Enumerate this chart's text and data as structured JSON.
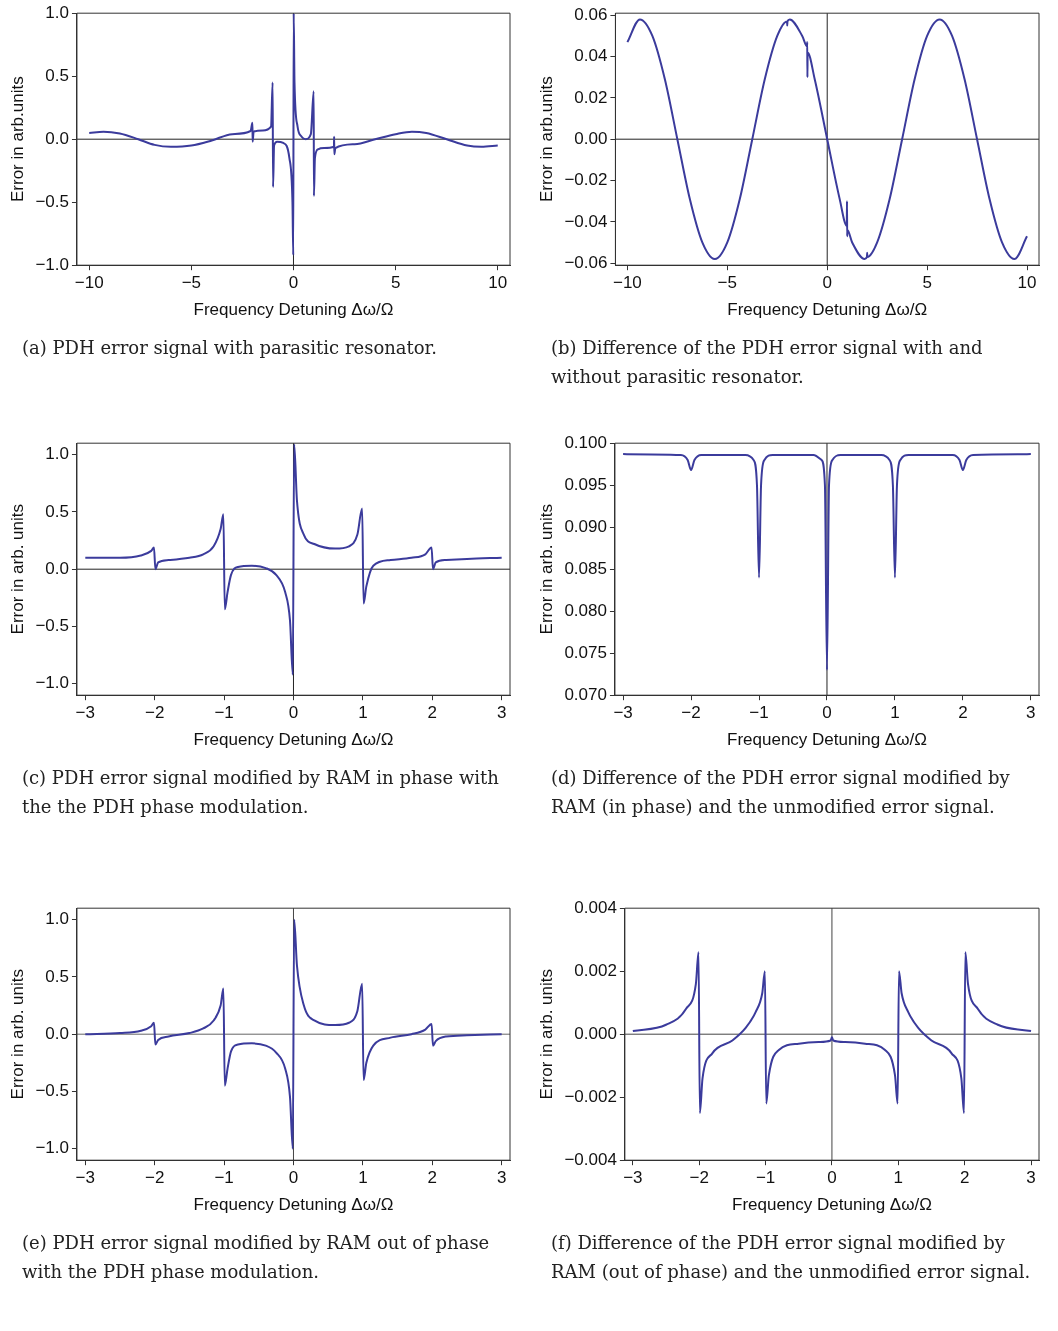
{
  "chart_data": [
    {
      "type": "line",
      "title": "(a) PDH error signal with parasitic resonator.",
      "xlabel": "Frequency Detuning Δω/Ω",
      "ylabel": "Error in arb.units",
      "color": "#3b3b9c",
      "x": [
        -10,
        -9.3,
        -8.5,
        -7.6,
        -6.8,
        -6,
        -5,
        -4,
        -3,
        -2.1,
        -2.01,
        -2,
        -1.95,
        -1.5,
        -1.1,
        -1.02,
        -1,
        -0.95,
        -0.8,
        -0.5,
        -0.2,
        -0.05,
        -0.01,
        0.01,
        0.05,
        0.2,
        0.4,
        0.6,
        0.85,
        0.99,
        1.0,
        1.05,
        1.2,
        1.5,
        1.98,
        1.99,
        2.0,
        2.05,
        3,
        4,
        5,
        5.8,
        6.5,
        7.5,
        8.5,
        9.2,
        10
      ],
      "values": [
        0.05,
        0.06,
        0.045,
        0,
        -0.045,
        -0.06,
        -0.05,
        -0.01,
        0.04,
        0.065,
        0.13,
        -0.02,
        0.06,
        0.07,
        0.1,
        0.45,
        -0.38,
        -0.05,
        -0.02,
        -0.03,
        -0.15,
        -0.5,
        -0.92,
        1.0,
        0.45,
        0.1,
        0.02,
        0,
        0.04,
        0.38,
        -0.45,
        -0.15,
        -0.08,
        -0.07,
        -0.06,
        0.02,
        -0.12,
        -0.07,
        -0.04,
        0,
        0.04,
        0.06,
        0.05,
        0,
        -0.05,
        -0.06,
        -0.05
      ],
      "xlim": [
        -10.6,
        10.6
      ],
      "ylim": [
        -1,
        1
      ],
      "xticks": [
        {
          "value": -10,
          "label": "−10"
        },
        {
          "value": -5,
          "label": "−5"
        },
        {
          "value": 0,
          "label": "0"
        },
        {
          "value": 5,
          "label": "5"
        },
        {
          "value": 10,
          "label": "10"
        }
      ],
      "yticks": [
        {
          "value": -1,
          "label": "−1.0"
        },
        {
          "value": -0.5,
          "label": "−0.5"
        },
        {
          "value": 0,
          "label": "0.0"
        },
        {
          "value": 0.5,
          "label": "0.5"
        },
        {
          "value": 1,
          "label": "1.0"
        }
      ],
      "ref_lines": [
        {
          "axis": "x",
          "value": 0,
          "color": "#222222"
        },
        {
          "axis": "y",
          "value": 0,
          "color": "#222222"
        }
      ]
    },
    {
      "type": "line",
      "title": "(b) Difference of the PDH error signal with and without parasitic resonator.",
      "xlabel": "Frequency Detuning Δω/Ω",
      "ylabel": "Error in arb.units",
      "color": "#3b3b9c",
      "x": [
        -10,
        -9.375,
        -8.75,
        -8.125,
        -7.5,
        -6.875,
        -6.25,
        -5.625,
        -5,
        -4.375,
        -3.75,
        -3.125,
        -2.5,
        -2.01,
        -2,
        -1.99,
        -1.875,
        -1.25,
        -1.01,
        -1.0,
        -0.99,
        -0.98,
        -0.625,
        0,
        0.625,
        0.98,
        0.99,
        1.0,
        1.01,
        1.25,
        1.875,
        1.99,
        2,
        2.01,
        2.5,
        3.125,
        3.75,
        4.375,
        5,
        5.625,
        6.25,
        6.875,
        7.5,
        8.125,
        8.75,
        9.375,
        10
      ],
      "values": [
        0.047,
        0.058,
        0.05,
        0.029,
        0,
        -0.029,
        -0.05,
        -0.058,
        -0.05,
        -0.029,
        0,
        0.029,
        0.05,
        0.057,
        0.055,
        0.057,
        0.058,
        0.05,
        0.045,
        0.047,
        0.03,
        0.042,
        0.029,
        0,
        -0.029,
        -0.042,
        -0.03,
        -0.047,
        -0.044,
        -0.05,
        -0.058,
        -0.057,
        -0.055,
        -0.057,
        -0.05,
        -0.029,
        0,
        0.029,
        0.05,
        0.058,
        0.05,
        0.029,
        0,
        -0.029,
        -0.05,
        -0.058,
        -0.047
      ],
      "xlim": [
        -10.6,
        10.6
      ],
      "ylim": [
        -0.061,
        0.061
      ],
      "xticks": [
        {
          "value": -10,
          "label": "−10"
        },
        {
          "value": -5,
          "label": "−5"
        },
        {
          "value": 0,
          "label": "0"
        },
        {
          "value": 5,
          "label": "5"
        },
        {
          "value": 10,
          "label": "10"
        }
      ],
      "yticks": [
        {
          "value": -0.06,
          "label": "−0.06"
        },
        {
          "value": -0.04,
          "label": "−0.04"
        },
        {
          "value": -0.02,
          "label": "−0.02"
        },
        {
          "value": 0,
          "label": "0.00"
        },
        {
          "value": 0.02,
          "label": "0.02"
        },
        {
          "value": 0.04,
          "label": "0.04"
        },
        {
          "value": 0.06,
          "label": "0.06"
        }
      ],
      "ref_lines": [
        {
          "axis": "x",
          "value": 0,
          "color": "#222222"
        },
        {
          "axis": "y",
          "value": 0,
          "color": "#222222"
        }
      ]
    },
    {
      "type": "line",
      "title": "(c) PDH error signal modified by RAM in phase with the the PDH phase modulation.",
      "xlabel": "Frequency Detuning Δω/Ω",
      "ylabel": "Error in arb. units",
      "color": "#3b3b9c",
      "x": [
        -3,
        -2.5,
        -2.2,
        -2.05,
        -2.01,
        -1.99,
        -1.95,
        -1.8,
        -1.5,
        -1.3,
        -1.15,
        -1.05,
        -1.01,
        -0.99,
        -0.95,
        -0.9,
        -0.8,
        -0.6,
        -0.4,
        -0.25,
        -0.12,
        -0.05,
        -0.01,
        0.01,
        0.05,
        0.15,
        0.3,
        0.6,
        0.8,
        0.92,
        0.99,
        1.01,
        1.05,
        1.15,
        1.4,
        1.7,
        1.9,
        1.99,
        2.01,
        2.05,
        2.2,
        2.5,
        3
      ],
      "values": [
        0.1,
        0.1,
        0.12,
        0.16,
        0.19,
        0,
        0.06,
        0.08,
        0.1,
        0.13,
        0.2,
        0.35,
        0.48,
        -0.35,
        -0.2,
        -0.05,
        0.02,
        0.03,
        0.01,
        -0.05,
        -0.2,
        -0.45,
        -0.92,
        1.09,
        0.6,
        0.3,
        0.22,
        0.18,
        0.2,
        0.3,
        0.53,
        -0.3,
        -0.15,
        0.03,
        0.08,
        0.1,
        0.13,
        0.19,
        0,
        0.06,
        0.08,
        0.09,
        0.1
      ],
      "xlim": [
        -3.12,
        3.12
      ],
      "ylim": [
        -1.1,
        1.1
      ],
      "xticks": [
        {
          "value": -3,
          "label": "−3"
        },
        {
          "value": -2,
          "label": "−2"
        },
        {
          "value": -1,
          "label": "−1"
        },
        {
          "value": 0,
          "label": "0"
        },
        {
          "value": 1,
          "label": "1"
        },
        {
          "value": 2,
          "label": "2"
        },
        {
          "value": 3,
          "label": "3"
        }
      ],
      "yticks": [
        {
          "value": -1,
          "label": "−1.0"
        },
        {
          "value": -0.5,
          "label": "−0.5"
        },
        {
          "value": 0,
          "label": "0.0"
        },
        {
          "value": 0.5,
          "label": "0.5"
        },
        {
          "value": 1,
          "label": "1.0"
        }
      ],
      "ref_lines": [
        {
          "axis": "x",
          "value": 0,
          "color": "#222222"
        },
        {
          "axis": "y",
          "value": 0,
          "color": "#222222"
        }
      ]
    },
    {
      "type": "line",
      "title": "(d) Difference of the PDH error signal modified by RAM (in phase) and the unmodified error signal.",
      "xlabel": "Frequency Detuning Δω/Ω",
      "ylabel": "Error in arb. units",
      "color": "#3b3b9c",
      "x": [
        -3,
        -2.15,
        -2.05,
        -2,
        -1.95,
        -1.85,
        -1.2,
        -1.08,
        -1.03,
        -1,
        -0.97,
        -0.92,
        -0.8,
        -0.2,
        -0.08,
        -0.03,
        0,
        0.03,
        0.08,
        0.2,
        0.8,
        0.92,
        0.97,
        1,
        1.03,
        1.08,
        1.2,
        1.85,
        1.95,
        2,
        2.05,
        2.15,
        3
      ],
      "values": [
        0.0987,
        0.0986,
        0.098,
        0.0968,
        0.098,
        0.0986,
        0.0986,
        0.098,
        0.095,
        0.084,
        0.095,
        0.098,
        0.0986,
        0.0986,
        0.098,
        0.095,
        0.073,
        0.095,
        0.098,
        0.0986,
        0.0986,
        0.098,
        0.095,
        0.084,
        0.095,
        0.098,
        0.0986,
        0.0986,
        0.098,
        0.0968,
        0.098,
        0.0986,
        0.0987
      ],
      "xlim": [
        -3.12,
        3.12
      ],
      "ylim": [
        0.07,
        0.1
      ],
      "xticks": [
        {
          "value": -3,
          "label": "−3"
        },
        {
          "value": -2,
          "label": "−2"
        },
        {
          "value": -1,
          "label": "−1"
        },
        {
          "value": 0,
          "label": "0"
        },
        {
          "value": 1,
          "label": "1"
        },
        {
          "value": 2,
          "label": "2"
        },
        {
          "value": 3,
          "label": "3"
        }
      ],
      "yticks": [
        {
          "value": 0.07,
          "label": "0.070"
        },
        {
          "value": 0.075,
          "label": "0.075"
        },
        {
          "value": 0.08,
          "label": "0.080"
        },
        {
          "value": 0.085,
          "label": "0.085"
        },
        {
          "value": 0.09,
          "label": "0.090"
        },
        {
          "value": 0.095,
          "label": "0.095"
        },
        {
          "value": 0.1,
          "label": "0.100"
        }
      ],
      "ref_lines": [
        {
          "axis": "x",
          "value": 0,
          "color": "#222222"
        }
      ]
    },
    {
      "type": "line",
      "title": "(e) PDH error signal modified by RAM out of phase with the PDH phase modulation.",
      "xlabel": "Frequency Detuning Δω/Ω",
      "ylabel": "Error in arb. units",
      "color": "#3b3b9c",
      "x": [
        -3,
        -2.5,
        -2.2,
        -2.05,
        -2.01,
        -1.99,
        -1.95,
        -1.8,
        -1.5,
        -1.3,
        -1.15,
        -1.05,
        -1.01,
        -0.99,
        -0.95,
        -0.9,
        -0.8,
        -0.6,
        -0.4,
        -0.25,
        -0.12,
        -0.05,
        -0.01,
        0.01,
        0.05,
        0.15,
        0.3,
        0.6,
        0.8,
        0.92,
        0.99,
        1.01,
        1.05,
        1.15,
        1.4,
        1.7,
        1.9,
        1.99,
        2.01,
        2.05,
        2.2,
        2.5,
        3
      ],
      "values": [
        0,
        0.01,
        0.03,
        0.07,
        0.1,
        -0.09,
        -0.05,
        -0.02,
        0.01,
        0.05,
        0.12,
        0.25,
        0.4,
        -0.45,
        -0.3,
        -0.15,
        -0.09,
        -0.08,
        -0.1,
        -0.16,
        -0.3,
        -0.55,
        -1.0,
        1.0,
        0.6,
        0.25,
        0.12,
        0.08,
        0.1,
        0.2,
        0.44,
        -0.4,
        -0.25,
        -0.1,
        -0.03,
        0,
        0.04,
        0.09,
        -0.1,
        -0.06,
        -0.02,
        -0.01,
        0
      ],
      "xlim": [
        -3.12,
        3.12
      ],
      "ylim": [
        -1.1,
        1.1
      ],
      "xticks": [
        {
          "value": -3,
          "label": "−3"
        },
        {
          "value": -2,
          "label": "−2"
        },
        {
          "value": -1,
          "label": "−1"
        },
        {
          "value": 0,
          "label": "0"
        },
        {
          "value": 1,
          "label": "1"
        },
        {
          "value": 2,
          "label": "2"
        },
        {
          "value": 3,
          "label": "3"
        }
      ],
      "yticks": [
        {
          "value": -1,
          "label": "−1.0"
        },
        {
          "value": -0.5,
          "label": "−0.5"
        },
        {
          "value": 0,
          "label": "0.0"
        },
        {
          "value": 0.5,
          "label": "0.5"
        },
        {
          "value": 1,
          "label": "1.0"
        }
      ],
      "ref_lines": [
        {
          "axis": "x",
          "value": 0,
          "color": "#444444"
        },
        {
          "axis": "y",
          "value": 0,
          "color": "#666666"
        }
      ]
    },
    {
      "type": "line",
      "title": "(f) Difference of the PDH error signal modified by RAM (out of phase) and the unmodified error signal.",
      "xlabel": "Frequency Detuning Δω/Ω",
      "ylabel": "Error in arb. units",
      "color": "#3b3b9c",
      "x": [
        -3,
        -2.5,
        -2.2,
        -2.05,
        -2.01,
        -1.99,
        -1.95,
        -1.8,
        -1.5,
        -1.3,
        -1.15,
        -1.05,
        -1.01,
        -0.99,
        -0.95,
        -0.8,
        -0.5,
        -0.2,
        -0.02,
        0,
        0.02,
        0.2,
        0.5,
        0.8,
        0.95,
        0.99,
        1.01,
        1.05,
        1.15,
        1.3,
        1.5,
        1.8,
        1.95,
        1.99,
        2.01,
        2.05,
        2.2,
        2.5,
        3
      ],
      "values": [
        0.0001,
        0.0003,
        0.0008,
        0.0016,
        0.0026,
        -0.0025,
        -0.0014,
        -0.0006,
        -0.0002,
        0.0002,
        0.0007,
        0.0013,
        0.002,
        -0.0022,
        -0.0013,
        -0.0005,
        -0.0003,
        -0.00025,
        -0.0002,
        -0.0001,
        -0.0002,
        -0.00025,
        -0.0003,
        -0.0005,
        -0.0013,
        -0.0022,
        0.002,
        0.0013,
        0.0007,
        0.0002,
        -0.0002,
        -0.0006,
        -0.0014,
        -0.0025,
        0.0026,
        0.0016,
        0.0008,
        0.0003,
        0.0001
      ],
      "xlim": [
        -3.12,
        3.12
      ],
      "ylim": [
        -0.004,
        0.004
      ],
      "xticks": [
        {
          "value": -3,
          "label": "−3"
        },
        {
          "value": -2,
          "label": "−2"
        },
        {
          "value": -1,
          "label": "−1"
        },
        {
          "value": 0,
          "label": "0"
        },
        {
          "value": 1,
          "label": "1"
        },
        {
          "value": 2,
          "label": "2"
        },
        {
          "value": 3,
          "label": "3"
        }
      ],
      "yticks": [
        {
          "value": -0.004,
          "label": "−0.004"
        },
        {
          "value": -0.002,
          "label": "−0.002"
        },
        {
          "value": 0,
          "label": "0.000"
        },
        {
          "value": 0.002,
          "label": "0.002"
        },
        {
          "value": 0.004,
          "label": "0.004"
        }
      ],
      "ref_lines": [
        {
          "axis": "x",
          "value": 0,
          "color": "#444444"
        },
        {
          "axis": "y",
          "value": 0,
          "color": "#444444"
        }
      ]
    }
  ]
}
